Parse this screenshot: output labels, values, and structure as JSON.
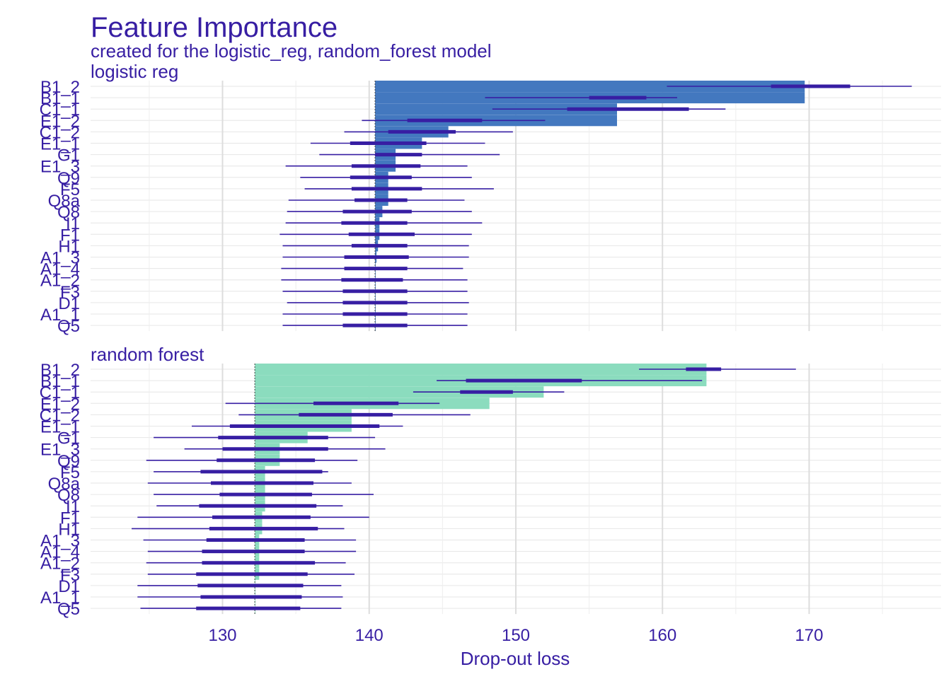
{
  "title": "Feature Importance",
  "subtitle": "created for the logistic_reg, random_forest model",
  "colors": {
    "text": "#371ea3",
    "panels": [
      "#4378bf",
      "#8bdcbe"
    ],
    "boxplot": "#371ea3",
    "grid": "#e6e6e6",
    "background": "#ffffff"
  },
  "chart_data": {
    "type": "bar",
    "xlabel": "Drop-out loss",
    "xlim": [
      121,
      179
    ],
    "xticks": [
      130,
      140,
      150,
      160,
      170
    ],
    "grid": true,
    "features": [
      "B1_2",
      "B1_1",
      "C1_1",
      "E1_2",
      "C1_2",
      "E1_1",
      "G1",
      "E1_3",
      "Q9",
      "F5",
      "Q8a",
      "Q8",
      "I1",
      "F1",
      "H1",
      "A1_3",
      "A1_4",
      "A1_2",
      "F3",
      "D1",
      "A1_1",
      "Q5"
    ],
    "panels": [
      {
        "name": "logistic_reg",
        "label": "logistic  reg",
        "baseline": 140.4,
        "values": [
          169.7,
          169.7,
          156.9,
          156.9,
          145.4,
          143.6,
          141.8,
          141.8,
          141.3,
          141.3,
          141.3,
          140.9,
          140.7,
          140.7,
          140.6,
          140.5,
          140.4,
          140.4,
          140.4,
          140.4,
          140.4,
          140.4
        ],
        "boxplots": [
          {
            "min": 160.3,
            "q1": 167.4,
            "q3": 172.8,
            "max": 177.0
          },
          {
            "min": 147.9,
            "q1": 155.0,
            "q3": 158.9,
            "max": 161.0
          },
          {
            "min": 148.4,
            "q1": 153.5,
            "q3": 161.8,
            "max": 164.3
          },
          {
            "min": 139.5,
            "q1": 142.6,
            "q3": 147.7,
            "max": 152.0
          },
          {
            "min": 138.3,
            "q1": 141.3,
            "q3": 145.9,
            "max": 149.8
          },
          {
            "min": 136.0,
            "q1": 138.7,
            "q3": 143.9,
            "max": 147.9
          },
          {
            "min": 136.6,
            "q1": 140.4,
            "q3": 143.6,
            "max": 148.9
          },
          {
            "min": 134.3,
            "q1": 138.8,
            "q3": 143.5,
            "max": 146.7
          },
          {
            "min": 135.3,
            "q1": 138.7,
            "q3": 142.9,
            "max": 147.0
          },
          {
            "min": 135.6,
            "q1": 138.8,
            "q3": 143.6,
            "max": 148.5
          },
          {
            "min": 134.5,
            "q1": 139.0,
            "q3": 142.6,
            "max": 146.5
          },
          {
            "min": 134.4,
            "q1": 138.2,
            "q3": 142.9,
            "max": 147.0
          },
          {
            "min": 134.3,
            "q1": 138.1,
            "q3": 142.6,
            "max": 147.7
          },
          {
            "min": 133.9,
            "q1": 138.6,
            "q3": 143.1,
            "max": 147.0
          },
          {
            "min": 134.1,
            "q1": 138.8,
            "q3": 142.6,
            "max": 146.8
          },
          {
            "min": 134.1,
            "q1": 138.3,
            "q3": 142.7,
            "max": 146.8
          },
          {
            "min": 134.0,
            "q1": 138.3,
            "q3": 142.6,
            "max": 146.4
          },
          {
            "min": 134.0,
            "q1": 138.1,
            "q3": 142.3,
            "max": 146.7
          },
          {
            "min": 134.1,
            "q1": 138.2,
            "q3": 142.6,
            "max": 146.7
          },
          {
            "min": 134.4,
            "q1": 138.2,
            "q3": 142.6,
            "max": 146.8
          },
          {
            "min": 134.1,
            "q1": 138.2,
            "q3": 142.6,
            "max": 146.7
          },
          {
            "min": 134.1,
            "q1": 138.2,
            "q3": 142.6,
            "max": 146.7
          }
        ]
      },
      {
        "name": "random_forest",
        "label": "random  forest",
        "baseline": 132.2,
        "values": [
          163.0,
          163.0,
          151.9,
          148.2,
          138.8,
          138.8,
          135.8,
          133.9,
          133.9,
          132.9,
          132.9,
          132.9,
          132.9,
          132.7,
          132.7,
          132.5,
          132.5,
          132.5,
          132.5,
          132.2,
          132.2,
          132.2
        ],
        "boxplots": [
          {
            "min": 158.4,
            "q1": 161.6,
            "q3": 164.0,
            "max": 169.1
          },
          {
            "min": 144.6,
            "q1": 146.6,
            "q3": 154.5,
            "max": 162.7
          },
          {
            "min": 143.0,
            "q1": 146.2,
            "q3": 149.8,
            "max": 153.3
          },
          {
            "min": 130.2,
            "q1": 136.2,
            "q3": 142.0,
            "max": 144.8
          },
          {
            "min": 131.1,
            "q1": 135.2,
            "q3": 141.6,
            "max": 146.9
          },
          {
            "min": 127.9,
            "q1": 130.5,
            "q3": 140.7,
            "max": 142.3
          },
          {
            "min": 125.3,
            "q1": 129.7,
            "q3": 137.2,
            "max": 140.4
          },
          {
            "min": 127.4,
            "q1": 130.0,
            "q3": 137.2,
            "max": 141.1
          },
          {
            "min": 124.8,
            "q1": 129.6,
            "q3": 136.3,
            "max": 139.2
          },
          {
            "min": 125.3,
            "q1": 128.5,
            "q3": 136.8,
            "max": 137.2
          },
          {
            "min": 124.9,
            "q1": 129.2,
            "q3": 136.2,
            "max": 138.8
          },
          {
            "min": 125.3,
            "q1": 129.8,
            "q3": 136.1,
            "max": 140.3
          },
          {
            "min": 125.5,
            "q1": 128.4,
            "q3": 136.4,
            "max": 138.2
          },
          {
            "min": 124.2,
            "q1": 129.3,
            "q3": 136.0,
            "max": 140.0
          },
          {
            "min": 123.8,
            "q1": 129.1,
            "q3": 136.5,
            "max": 138.3
          },
          {
            "min": 124.6,
            "q1": 128.9,
            "q3": 135.6,
            "max": 139.1
          },
          {
            "min": 124.9,
            "q1": 128.6,
            "q3": 135.6,
            "max": 139.1
          },
          {
            "min": 124.8,
            "q1": 128.6,
            "q3": 136.3,
            "max": 138.4
          },
          {
            "min": 124.9,
            "q1": 128.2,
            "q3": 135.8,
            "max": 139.0
          },
          {
            "min": 124.2,
            "q1": 128.3,
            "q3": 135.5,
            "max": 138.1
          },
          {
            "min": 124.2,
            "q1": 128.5,
            "q3": 135.4,
            "max": 138.2
          },
          {
            "min": 124.4,
            "q1": 128.2,
            "q3": 135.3,
            "max": 138.1
          }
        ]
      }
    ]
  }
}
